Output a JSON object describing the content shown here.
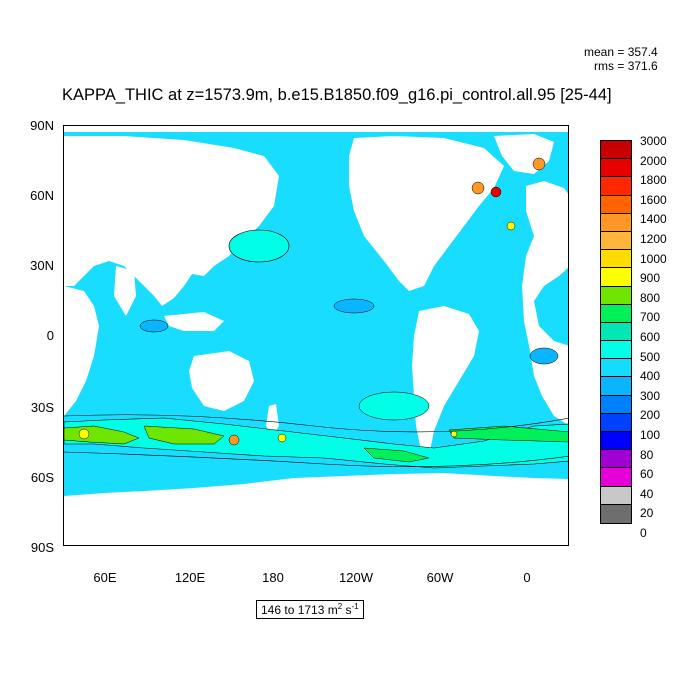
{
  "title": "KAPPA_THIC at z=1573.9m, b.e15.B1850.f09_g16.pi_control.all.95 [25-44]",
  "stats": {
    "mean": "mean = 357.4",
    "rms": "rms = 371.6"
  },
  "y_ticks": [
    "90N",
    "60N",
    "30N",
    "0",
    "30S",
    "60S",
    "90S"
  ],
  "x_ticks": [
    "60E",
    "120E",
    "180",
    "120W",
    "60W",
    "0"
  ],
  "colorbar": {
    "labels": [
      "3000",
      "2000",
      "1800",
      "1600",
      "1400",
      "1200",
      "1000",
      "900",
      "800",
      "700",
      "600",
      "500",
      "400",
      "300",
      "200",
      "100",
      "80",
      "60",
      "40",
      "20",
      "0"
    ],
    "colors": [
      "#c80000",
      "#e60000",
      "#ff2800",
      "#ff6400",
      "#ff9628",
      "#ffb43c",
      "#ffdc00",
      "#ffff00",
      "#6ee600",
      "#00f05a",
      "#00e6b4",
      "#00ffe6",
      "#14dcff",
      "#0ab4ff",
      "#0080ff",
      "#0040ff",
      "#0000ff",
      "#a000d2",
      "#e600d7",
      "#c8c8c8",
      "#6e6e6e"
    ]
  },
  "range_text": {
    "prefix": "146 to 1713 m",
    "exp": "2",
    "mid": " s",
    "exp2": "-1"
  },
  "map_colors": {
    "ocean": "#19ddff",
    "ocean_light": "#00ffe6",
    "ocean_mid": "#0bb4ff",
    "green": "#6ee600",
    "green2": "#00f05a",
    "yellow": "#ffff00",
    "orange": "#ff9628",
    "red": "#e60000",
    "land": "#ffffff"
  }
}
